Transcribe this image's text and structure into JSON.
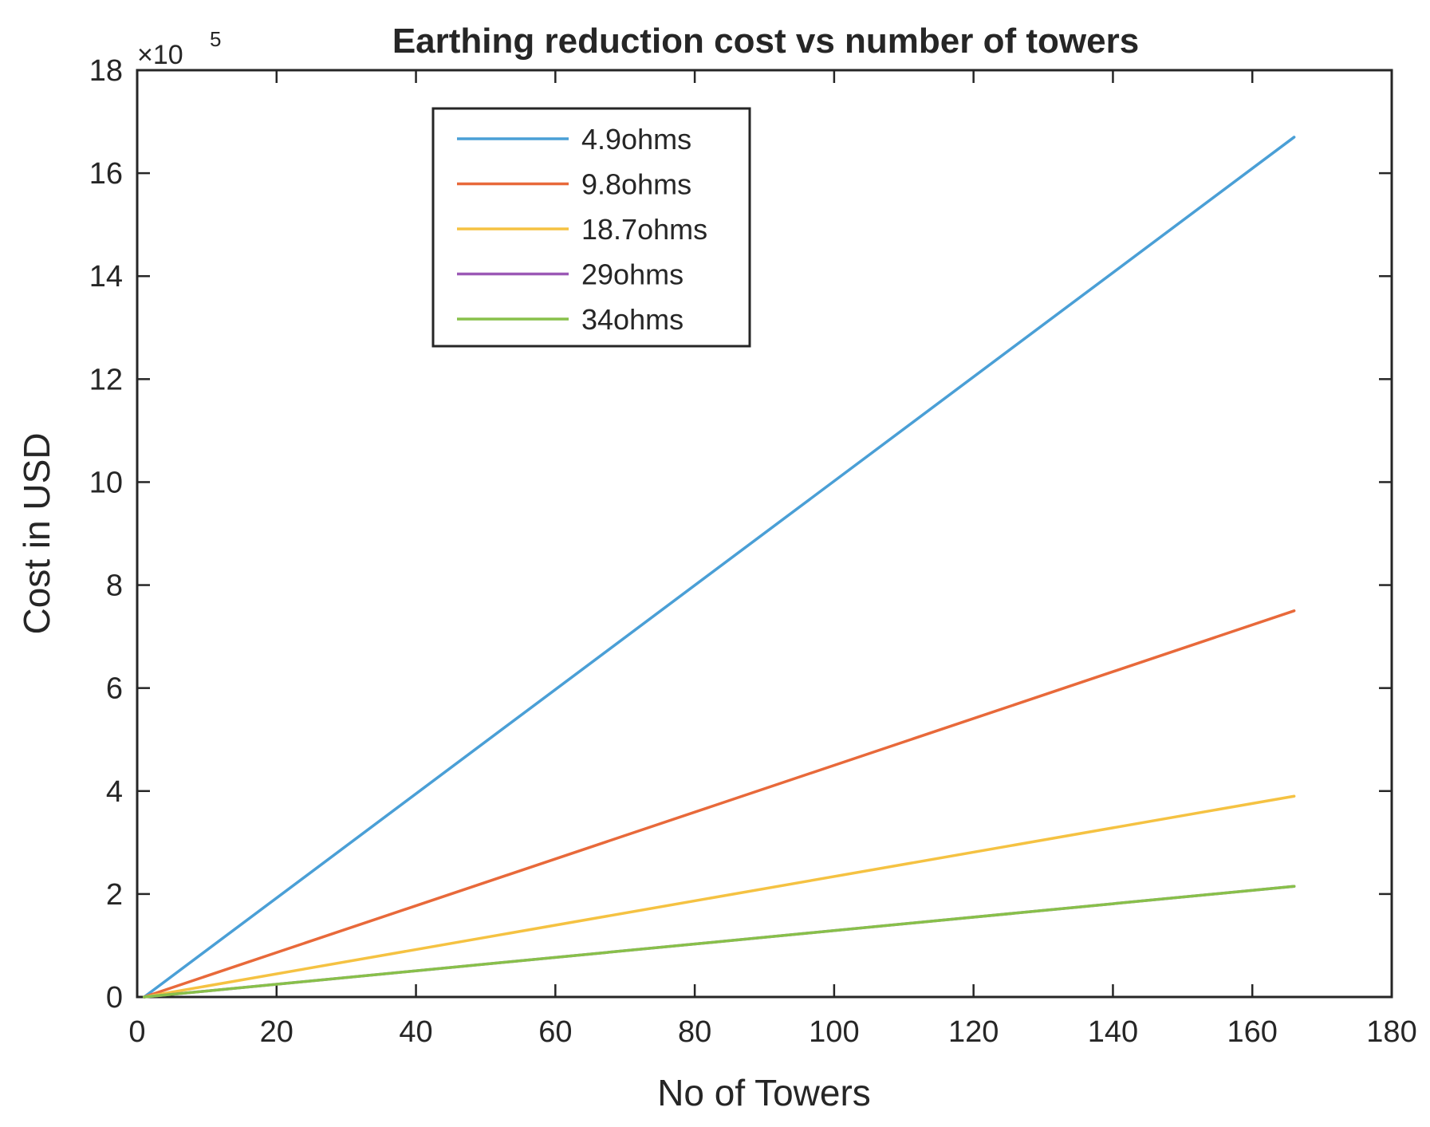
{
  "chart_data": {
    "type": "line",
    "title": "Earthing reduction cost vs number of towers",
    "xlabel": "No of Towers",
    "ylabel": "Cost in USD",
    "y_exponent_base": "×10",
    "y_exponent_power": "5",
    "xlim": [
      0,
      180
    ],
    "ylim": [
      0,
      18
    ],
    "x_ticks": [
      0,
      20,
      40,
      60,
      80,
      100,
      120,
      140,
      160,
      180
    ],
    "y_ticks": [
      0,
      2,
      4,
      6,
      8,
      10,
      12,
      14,
      16,
      18
    ],
    "grid": false,
    "legend_position": "top-left",
    "series": [
      {
        "name": "4.9ohms",
        "color": "#0072BD",
        "display_color": "#4a9fd6",
        "x": [
          1,
          166
        ],
        "y": [
          0,
          16.7
        ]
      },
      {
        "name": "9.8ohms",
        "color": "#D95319",
        "display_color": "#e8693a",
        "x": [
          1,
          166
        ],
        "y": [
          0,
          7.5
        ]
      },
      {
        "name": "18.7ohms",
        "color": "#EDB120",
        "display_color": "#f5c242",
        "x": [
          1,
          166
        ],
        "y": [
          0,
          3.9
        ]
      },
      {
        "name": "29ohms",
        "color": "#7E2F8E",
        "display_color": "#9b59b6",
        "x": [
          1,
          166
        ],
        "y": [
          0,
          2.15
        ]
      },
      {
        "name": "34ohms",
        "color": "#77AC30",
        "display_color": "#88c04a",
        "x": [
          1,
          166
        ],
        "y": [
          0,
          2.15
        ]
      }
    ]
  }
}
